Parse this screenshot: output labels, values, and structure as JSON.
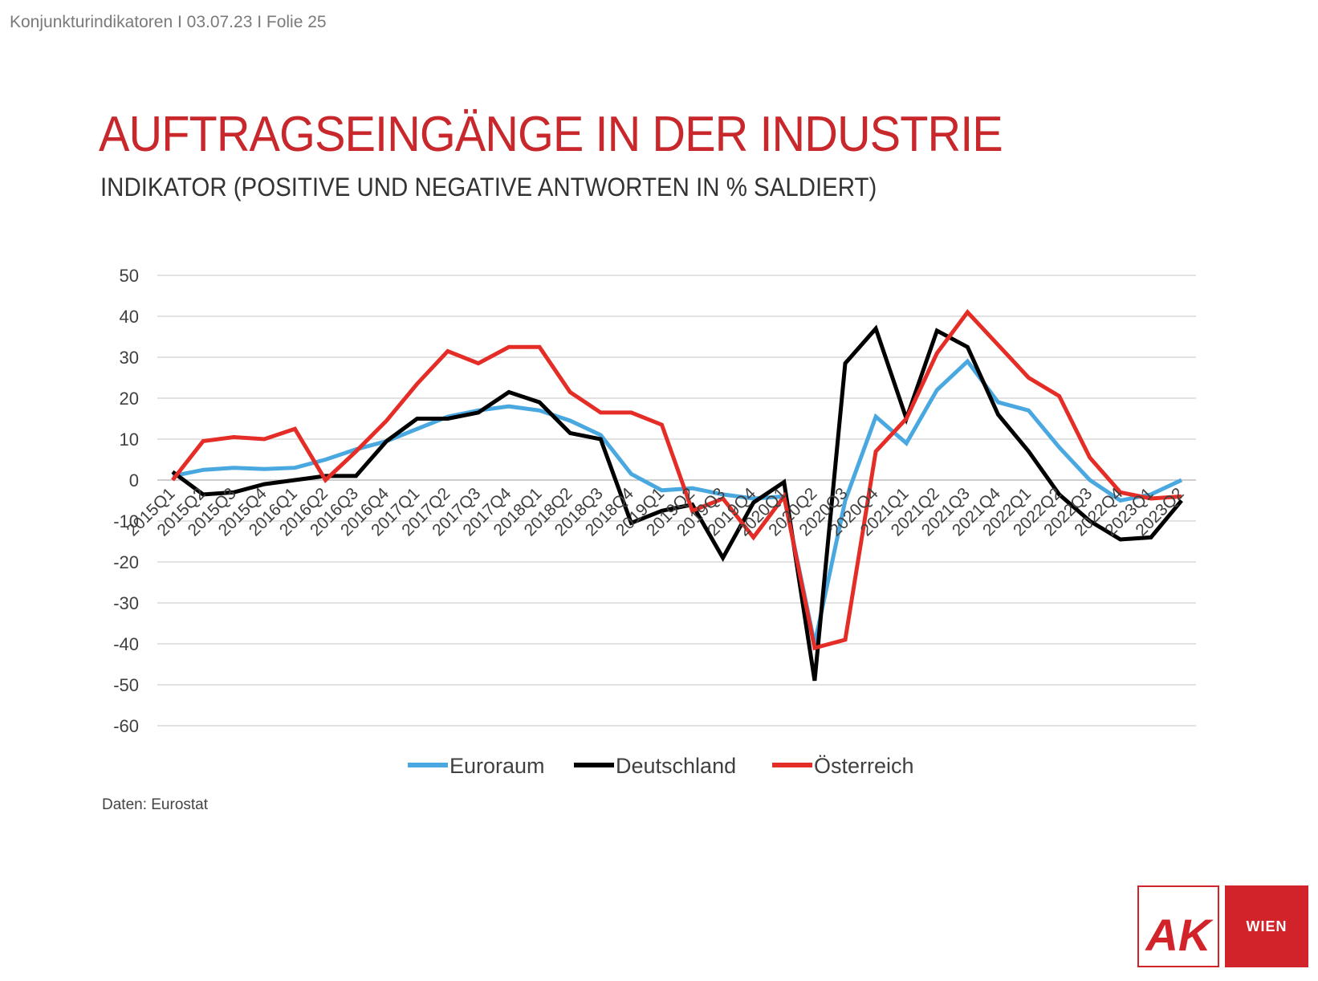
{
  "header": {
    "info": "Konjunkturindikatoren I 03.07.23 I Folie 25"
  },
  "title": "AUFTRAGSEINGÄNGE IN DER INDUSTRIE",
  "subtitle": "INDIKATOR (POSITIVE UND NEGATIVE ANTWORTEN IN % SALDIERT)",
  "source": "Daten: Eurostat",
  "logo": {
    "mark": "AK",
    "city": "WIEN",
    "color": "#d2232a"
  },
  "chart_data": {
    "type": "line",
    "title": "",
    "xlabel": "",
    "ylabel": "",
    "ylim": [
      -60,
      50
    ],
    "yticks": [
      50,
      40,
      30,
      20,
      10,
      0,
      -10,
      -20,
      -30,
      -40,
      -50,
      -60
    ],
    "grid": true,
    "legend_position": "bottom",
    "categories": [
      "2015Q1",
      "2015Q2",
      "2015Q3",
      "2015Q4",
      "2016Q1",
      "2016Q2",
      "2016Q3",
      "2016Q4",
      "2017Q1",
      "2017Q2",
      "2017Q3",
      "2017Q4",
      "2018Q1",
      "2018Q2",
      "2018Q3",
      "2018Q4",
      "2019Q1",
      "2019Q2",
      "2019Q3",
      "2019Q4",
      "2020Q1",
      "2020Q2",
      "2020Q3",
      "2020Q4",
      "2021Q1",
      "2021Q2",
      "2021Q3",
      "2021Q4",
      "2022Q1",
      "2022Q2",
      "2022Q3",
      "2022Q4",
      "2023Q1",
      "2023Q2"
    ],
    "series": [
      {
        "name": "Euroraum",
        "color": "#4aa8e0",
        "values": [
          1,
          2.5,
          3,
          2.7,
          3,
          5,
          7.5,
          9.5,
          12.5,
          15.5,
          17,
          18,
          17,
          14.5,
          11,
          1.5,
          -2.5,
          -2,
          -3.5,
          -4.5,
          -4,
          -40,
          -5,
          15.5,
          9,
          22,
          29,
          19,
          17,
          8,
          0,
          -5,
          -3.5,
          0
        ]
      },
      {
        "name": "Deutschland",
        "color": "#000000",
        "values": [
          2,
          -3.5,
          -3,
          -1,
          0,
          1,
          1,
          9.5,
          15,
          15,
          16.5,
          21.5,
          19,
          11.5,
          10,
          -10.5,
          -7.5,
          -6,
          -19,
          -5.5,
          -0.5,
          -49,
          28.5,
          37,
          15,
          36.5,
          32.5,
          16,
          7,
          -3.5,
          -10,
          -14.5,
          -14,
          -5
        ]
      },
      {
        "name": "Österreich",
        "color": "#e52d27",
        "values": [
          0,
          9.5,
          10.5,
          10,
          12.5,
          0,
          7,
          14.5,
          23.5,
          31.5,
          28.5,
          32.5,
          32.5,
          21.5,
          16.5,
          16.5,
          13.5,
          -7.5,
          -4.5,
          -14,
          -4,
          -41,
          -39,
          7,
          15,
          31,
          41,
          33,
          25,
          20.5,
          5.5,
          -3,
          -4.5,
          -4
        ]
      }
    ]
  }
}
